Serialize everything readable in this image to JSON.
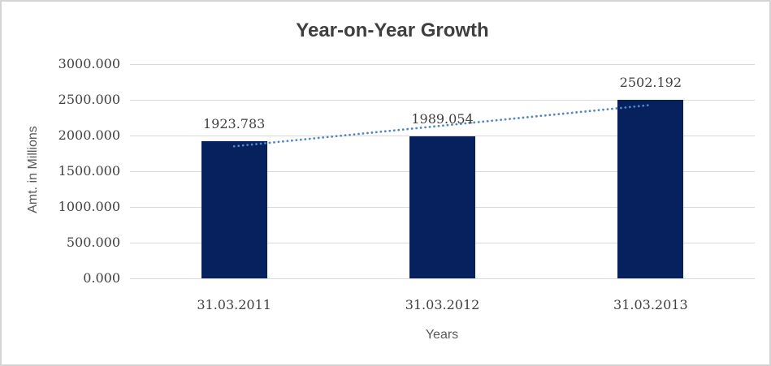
{
  "window": {
    "background": "#ffffff",
    "border_color": "#d5d5d5"
  },
  "chart_data": {
    "type": "bar",
    "title": "Year-on-Year Growth",
    "xlabel": "Years",
    "ylabel": "Amt. in Millions",
    "categories": [
      "31.03.2011",
      "31.03.2012",
      "31.03.2013"
    ],
    "values": [
      1923.783,
      1989.054,
      2502.192
    ],
    "data_labels": [
      "1923.783",
      "1989.054",
      "2502.192"
    ],
    "ylim": [
      0,
      3000
    ],
    "yticks": [
      0,
      500,
      1000,
      1500,
      2000,
      2500,
      3000
    ],
    "ytick_labels": [
      "0.000",
      "500.000",
      "1000.000",
      "1500.000",
      "2000.000",
      "2500.000",
      "3000.000"
    ],
    "grid": true,
    "legend": false,
    "series_name": "Amt. in Millions",
    "trendline": {
      "type": "linear",
      "style": "dotted",
      "color": "#4e87c9"
    },
    "colors": {
      "bar": "#06215e",
      "gridline": "#d9d9d9",
      "title_text": "#3f3f3f",
      "tick_text": "#404040",
      "axis_title_text": "#595959"
    }
  }
}
